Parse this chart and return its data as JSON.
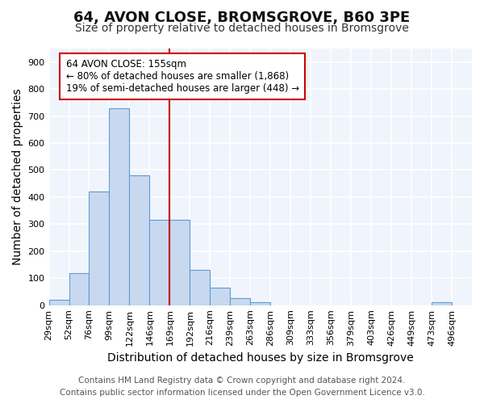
{
  "title": "64, AVON CLOSE, BROMSGROVE, B60 3PE",
  "subtitle": "Size of property relative to detached houses in Bromsgrove",
  "xlabel": "Distribution of detached houses by size in Bromsgrove",
  "ylabel": "Number of detached properties",
  "footer_line1": "Contains HM Land Registry data © Crown copyright and database right 2024.",
  "footer_line2": "Contains public sector information licensed under the Open Government Licence v3.0.",
  "bin_labels": [
    "29sqm",
    "52sqm",
    "76sqm",
    "99sqm",
    "122sqm",
    "146sqm",
    "169sqm",
    "192sqm",
    "216sqm",
    "239sqm",
    "263sqm",
    "286sqm",
    "309sqm",
    "333sqm",
    "356sqm",
    "379sqm",
    "403sqm",
    "426sqm",
    "449sqm",
    "473sqm",
    "496sqm"
  ],
  "bar_heights": [
    20,
    120,
    420,
    730,
    480,
    315,
    315,
    130,
    65,
    25,
    10,
    0,
    0,
    0,
    0,
    0,
    0,
    0,
    0,
    10,
    0
  ],
  "bar_color": "#c8d9ef",
  "bar_edgecolor": "#5b9bd5",
  "red_line_bin_index": 6,
  "red_line_color": "#cc0000",
  "annotation_text": "64 AVON CLOSE: 155sqm\n← 80% of detached houses are smaller (1,868)\n19% of semi-detached houses are larger (448) →",
  "annotation_box_color": "#ffffff",
  "annotation_box_edgecolor": "#cc0000",
  "ylim": [
    0,
    950
  ],
  "yticks": [
    0,
    100,
    200,
    300,
    400,
    500,
    600,
    700,
    800,
    900
  ],
  "bg_color": "#ffffff",
  "plot_bg_color": "#f0f4fc",
  "grid_color": "#ffffff",
  "title_fontsize": 13,
  "subtitle_fontsize": 10,
  "axis_label_fontsize": 10,
  "tick_fontsize": 8,
  "footer_fontsize": 7.5
}
